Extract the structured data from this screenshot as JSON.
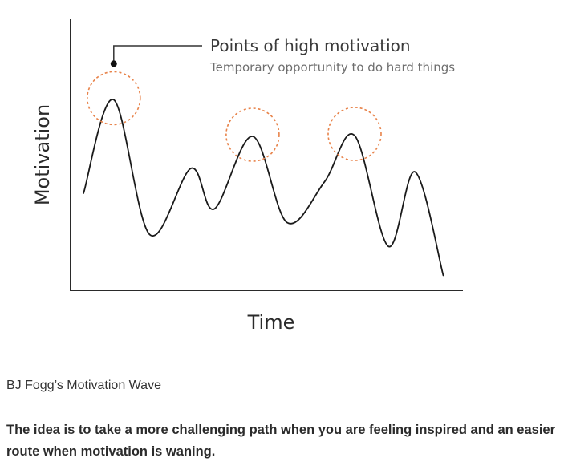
{
  "chart_data": {
    "type": "line",
    "title": "",
    "xlabel": "Time",
    "ylabel": "Motivation",
    "ticks": "none",
    "grid": false,
    "legend": "none",
    "ylim": [
      0,
      100
    ],
    "xlim": [
      0,
      100
    ],
    "series": [
      {
        "color": "#1a1a1a",
        "points": [
          [
            3.3,
            35.8
          ],
          [
            11.0,
            70.3
          ],
          [
            20.2,
            20.5
          ],
          [
            30.7,
            45.0
          ],
          [
            36.6,
            30.0
          ],
          [
            46.4,
            56.8
          ],
          [
            55.2,
            25.0
          ],
          [
            64.7,
            40.0
          ],
          [
            72.4,
            57.1
          ],
          [
            81.0,
            16.2
          ],
          [
            87.8,
            43.7
          ],
          [
            95.0,
            5.5
          ]
        ]
      }
    ],
    "highlights": [
      {
        "x": 11.0,
        "y": 70.3
      },
      {
        "x": 46.4,
        "y": 56.8
      },
      {
        "x": 72.4,
        "y": 57.1
      }
    ],
    "highlight_color": "#e8834a",
    "annotation": {
      "title": "Points of high motivation",
      "subtitle": "Temporary opportunity to do hard things"
    }
  },
  "caption": "BJ Fogg’s Motivation Wave",
  "body_text": "The idea is to take a more challenging path when you are feeling inspired and an easier route when motivation is waning."
}
